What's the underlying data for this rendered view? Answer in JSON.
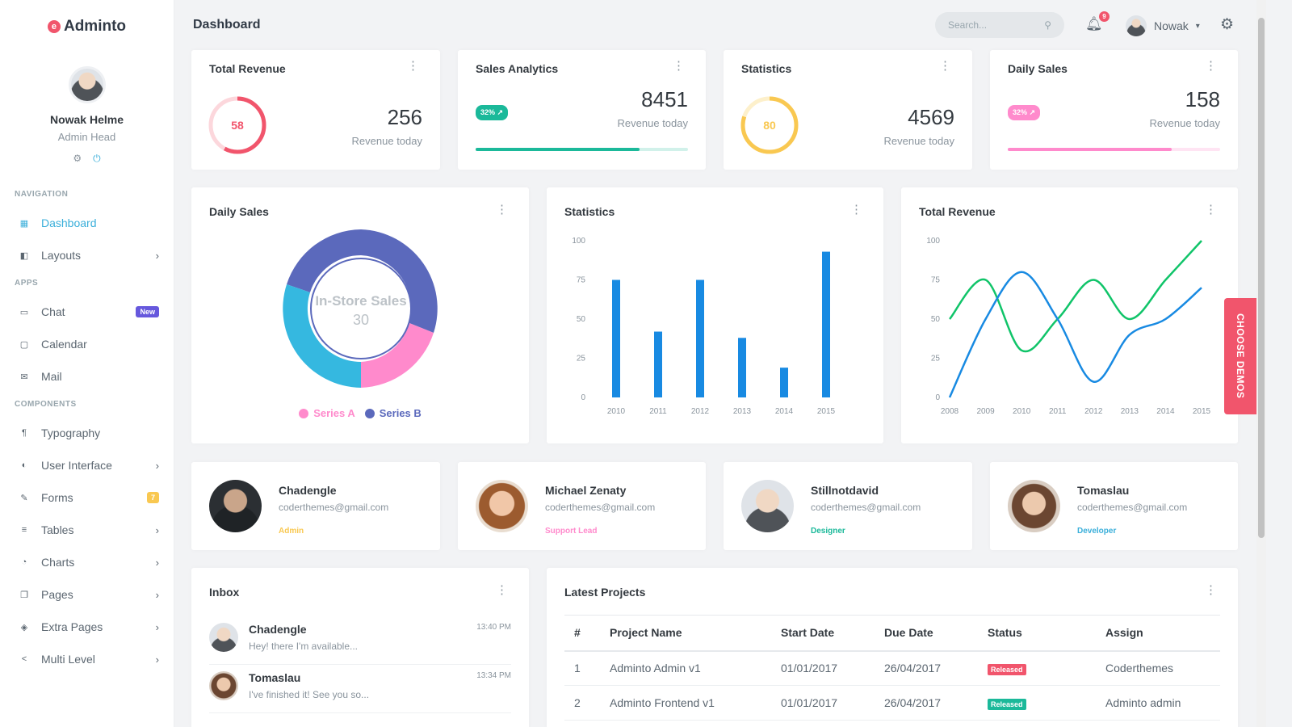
{
  "app": {
    "brand": "Adminto",
    "brand_icon": "adminto-logo-icon",
    "accent": "#3bafda",
    "danger": "#f1556c"
  },
  "sidebar": {
    "profile": {
      "name": "Nowak Helme",
      "role": "Admin Head"
    },
    "sections": {
      "navigation": "NAVIGATION",
      "apps": "APPS",
      "components": "COMPONENTS"
    },
    "items": [
      {
        "label": "Dashboard",
        "icon": "dashboard-icon"
      },
      {
        "label": "Layouts",
        "icon": "layouts-icon"
      },
      {
        "label": "Chat",
        "icon": "chat-icon",
        "badge": "New"
      },
      {
        "label": "Calendar",
        "icon": "calendar-icon"
      },
      {
        "label": "Mail",
        "icon": "mail-icon"
      },
      {
        "label": "Typography",
        "icon": "typography-icon"
      },
      {
        "label": "User Interface",
        "icon": "user-interface-icon"
      },
      {
        "label": "Forms",
        "icon": "forms-icon",
        "badge": "7"
      },
      {
        "label": "Tables",
        "icon": "tables-icon"
      },
      {
        "label": "Charts",
        "icon": "charts-icon"
      },
      {
        "label": "Pages",
        "icon": "pages-icon"
      },
      {
        "label": "Extra Pages",
        "icon": "extra-pages-icon"
      },
      {
        "label": "Multi Level",
        "icon": "multi-level-icon"
      }
    ]
  },
  "topbar": {
    "title": "Dashboard",
    "search_placeholder": "Search...",
    "notification_count": "9",
    "username": "Nowak"
  },
  "stats": [
    {
      "title": "Total Revenue",
      "value": "256",
      "sub": "Revenue today",
      "gauge_value": "58",
      "gauge_color": "#f1556c"
    },
    {
      "title": "Sales Analytics",
      "value": "8451",
      "sub": "Revenue today",
      "pill": "32%",
      "pill_color": "#1bb99a",
      "progress": 0.77
    },
    {
      "title": "Statistics",
      "value": "4569",
      "sub": "Revenue today",
      "gauge_value": "80",
      "gauge_color": "#f9c851"
    },
    {
      "title": "Daily Sales",
      "value": "158",
      "sub": "Revenue today",
      "pill": "32%",
      "pill_color": "#ff8acc",
      "progress": 0.77
    }
  ],
  "charts_titles": {
    "donut": "Daily Sales",
    "bar": "Statistics",
    "line": "Total Revenue"
  },
  "chart_data": [
    {
      "type": "pie",
      "title": "Daily Sales",
      "center_label": "In-Store Sales",
      "center_value": "30",
      "legend": [
        "Series A",
        "Series B"
      ],
      "legend_colors": [
        "#ff8acc",
        "#5b69bc"
      ]
    },
    {
      "type": "bar",
      "title": "Statistics",
      "categories": [
        "2010",
        "2011",
        "2012",
        "2013",
        "2014",
        "2015"
      ],
      "values": [
        75,
        42,
        75,
        38,
        19,
        93
      ],
      "ylim": [
        0,
        100
      ],
      "yticks": [
        0,
        25,
        50,
        75,
        100
      ],
      "color": "#188ae2"
    },
    {
      "type": "line",
      "title": "Total Revenue",
      "x": [
        "2008",
        "2009",
        "2010",
        "2011",
        "2012",
        "2013",
        "2014",
        "2015"
      ],
      "ylim": [
        0,
        100
      ],
      "yticks": [
        0,
        25,
        50,
        75,
        100
      ],
      "series": [
        {
          "values": [
            50,
            75,
            30,
            50,
            75,
            50,
            75,
            100
          ],
          "color": "#10c469"
        },
        {
          "values": [
            0,
            50,
            80,
            50,
            10,
            40,
            50,
            70
          ],
          "color": "#188ae2"
        }
      ]
    }
  ],
  "contacts": [
    {
      "name": "Chadengle",
      "email": "coderthemes@gmail.com",
      "role": "Admin",
      "role_color": "#f9c851"
    },
    {
      "name": "Michael Zenaty",
      "email": "coderthemes@gmail.com",
      "role": "Support Lead",
      "role_color": "#ff8acc"
    },
    {
      "name": "Stillnotdavid",
      "email": "coderthemes@gmail.com",
      "role": "Designer",
      "role_color": "#1bb99a"
    },
    {
      "name": "Tomaslau",
      "email": "coderthemes@gmail.com",
      "role": "Developer",
      "role_color": "#3bafda"
    }
  ],
  "inbox": {
    "title": "Inbox",
    "messages": [
      {
        "name": "Chadengle",
        "text": "Hey! there I'm available...",
        "time": "13:40 PM"
      },
      {
        "name": "Tomaslau",
        "text": "I've finished it! See you so...",
        "time": "13:34 PM"
      }
    ]
  },
  "projects": {
    "title": "Latest Projects",
    "headers": [
      "#",
      "Project Name",
      "Start Date",
      "Due Date",
      "Status",
      "Assign"
    ],
    "rows": [
      {
        "num": "1",
        "name": "Adminto Admin v1",
        "start": "01/01/2017",
        "due": "26/04/2017",
        "status": "Released",
        "status_color": "#f1556c",
        "assign": "Coderthemes"
      },
      {
        "num": "2",
        "name": "Adminto Frontend v1",
        "start": "01/01/2017",
        "due": "26/04/2017",
        "status": "Released",
        "status_color": "#1bb99a",
        "assign": "Adminto admin"
      }
    ]
  },
  "choose_demos": "CHOOSE DEMOS"
}
